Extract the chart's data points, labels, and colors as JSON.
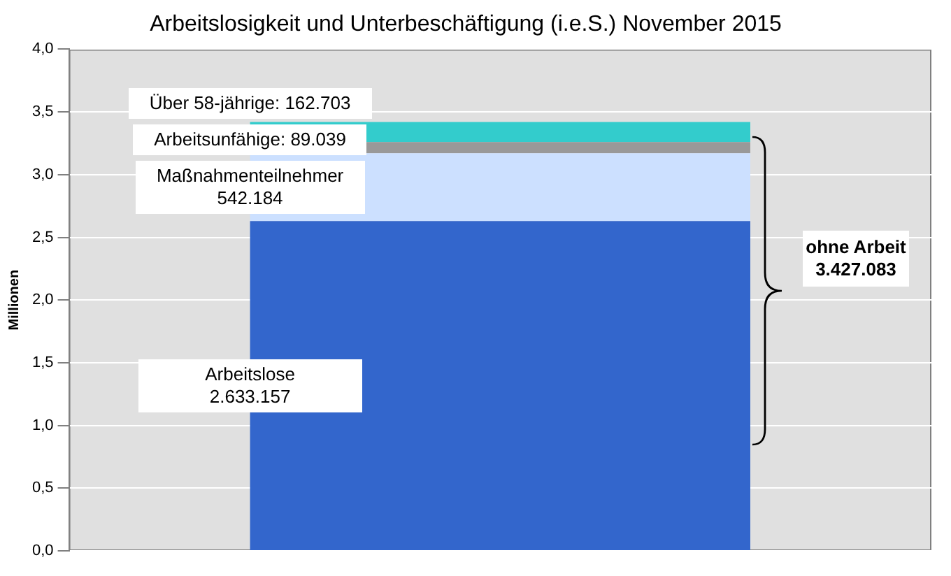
{
  "chart_data": {
    "type": "bar",
    "stacked": true,
    "title": "Arbeitslosigkeit und Unterbeschäftigung (i.e.S.) November 2015",
    "ylabel": "Millionen",
    "categories": [
      null
    ],
    "series": [
      {
        "name": "Arbeitslose 2.633.157",
        "color": "#3366cc",
        "values": [
          2.63
        ]
      },
      {
        "name": "Maßnahmenteilnehmer 542.184",
        "color": "#cce0ff",
        "values": [
          0.54
        ]
      },
      {
        "name": "Arbeitsunfähige: 89.039",
        "color": "#999999",
        "values": [
          0.09
        ]
      },
      {
        "name": "Über 58-jährige: 162.703",
        "color": "#33cccc",
        "values": [
          0.16
        ]
      }
    ],
    "ylim": [
      0,
      4
    ],
    "yticks": [
      {
        "value": 0,
        "label": "0,0"
      },
      {
        "value": 0.5,
        "label": "0,5"
      },
      {
        "value": 1,
        "label": "1,0"
      },
      {
        "value": 1.5,
        "label": "1,5"
      },
      {
        "value": 2,
        "label": "2,0"
      },
      {
        "value": 2.5,
        "label": "2,5"
      },
      {
        "value": 3,
        "label": "3,0"
      },
      {
        "value": 3.5,
        "label": "3,5"
      },
      {
        "value": 4,
        "label": "4,0"
      }
    ],
    "grid": "y",
    "legend": false,
    "annotations": [
      "ohne Arbeit 3.427.083"
    ]
  }
}
